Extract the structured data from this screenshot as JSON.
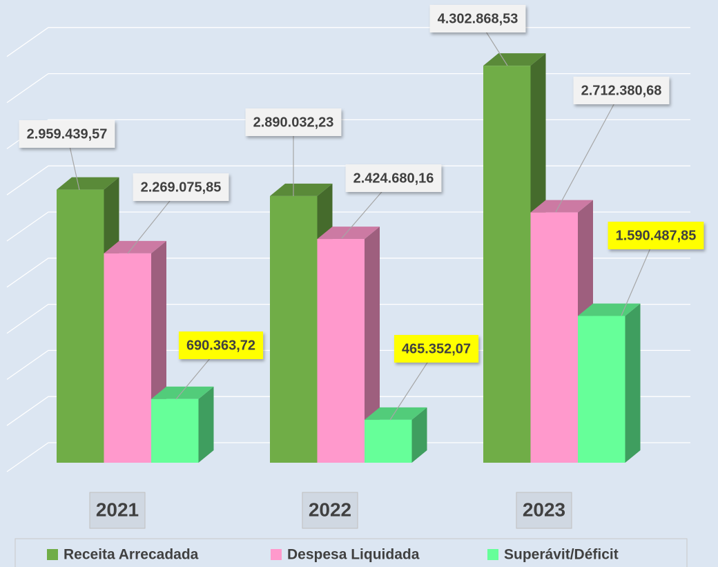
{
  "chart_data": {
    "type": "bar3d",
    "categories": [
      "2021",
      "2022",
      "2023"
    ],
    "series": [
      {
        "name": "Receita Arrecadada",
        "color": "#70ad47",
        "values": [
          2959439.57,
          2890032.23,
          4302868.53
        ],
        "value_labels": [
          "2.959.439,57",
          "2.890.032,23",
          "4.302.868,53"
        ],
        "label_color": "#f2f2f2"
      },
      {
        "name": "Despesa Liquidada",
        "color": "#ff99cc",
        "values": [
          2269075.85,
          2424680.16,
          2712380.68
        ],
        "value_labels": [
          "2.269.075,85",
          "2.424.680,16",
          "2.712.380,68"
        ],
        "label_color": "#f2f2f2"
      },
      {
        "name": "Superávit/Déficit",
        "color": "#66ff99",
        "values": [
          690363.72,
          465352.07,
          1590487.85
        ],
        "value_labels": [
          "690.363,72",
          "465.352,07",
          "1.590.487,85"
        ],
        "label_color": "#ffff00"
      }
    ],
    "ylim": [
      0,
      5000000
    ],
    "yticks": [
      0,
      500000,
      1000000,
      1500000,
      2000000,
      2500000,
      3000000,
      3500000,
      4000000,
      4500000
    ],
    "grid": true,
    "legend": "bottom"
  }
}
